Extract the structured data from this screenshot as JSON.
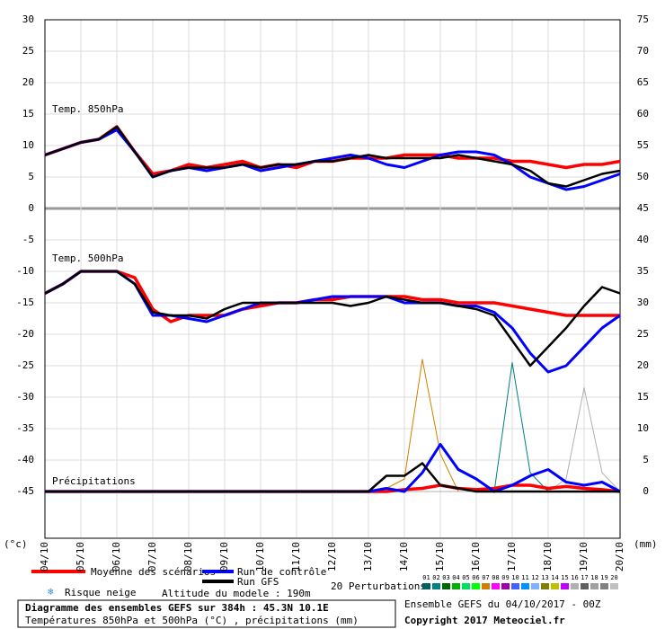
{
  "chart_data": {
    "type": "line",
    "panel_labels": [
      "Temp. 850hPa",
      "Temp. 500hPa",
      "Précipitations"
    ],
    "y_unit": "(°c)",
    "y2_unit": "(mm)",
    "xlim": [
      0,
      384
    ],
    "xticks": [
      {
        "value": 0,
        "label": "04/10"
      },
      {
        "value": 24,
        "label": "05/10"
      },
      {
        "value": 48,
        "label": "06/10"
      },
      {
        "value": 72,
        "label": "07/10"
      },
      {
        "value": 96,
        "label": "08/10"
      },
      {
        "value": 120,
        "label": "09/10"
      },
      {
        "value": 144,
        "label": "10/10"
      },
      {
        "value": 168,
        "label": "11/10"
      },
      {
        "value": 192,
        "label": "12/10"
      },
      {
        "value": 216,
        "label": "13/10"
      },
      {
        "value": 240,
        "label": "14/10"
      },
      {
        "value": 264,
        "label": "15/10"
      },
      {
        "value": 288,
        "label": "16/10"
      },
      {
        "value": 312,
        "label": "17/10"
      },
      {
        "value": 336,
        "label": "18/10"
      },
      {
        "value": 360,
        "label": "19/10"
      },
      {
        "value": 384,
        "label": "20/10"
      }
    ],
    "ylim": [
      -52.5,
      30
    ],
    "yticks": [
      30,
      25,
      20,
      15,
      10,
      5,
      0,
      -5,
      -10,
      -15,
      -20,
      -25,
      -30,
      -35,
      -40,
      -45
    ],
    "y2lim": [
      -7.5,
      75
    ],
    "y2ticks": [
      75,
      70,
      65,
      60,
      55,
      50,
      45,
      40,
      35,
      30,
      25,
      20,
      15,
      10,
      5,
      0
    ],
    "grid": true,
    "x": [
      0,
      12,
      24,
      36,
      48,
      60,
      72,
      84,
      96,
      108,
      120,
      132,
      144,
      156,
      168,
      180,
      192,
      204,
      216,
      228,
      240,
      252,
      264,
      276,
      288,
      300,
      312,
      324,
      336,
      348,
      360,
      372,
      384
    ],
    "series": [
      {
        "name": "Moyenne des scénarios",
        "color": "#ff0000",
        "width": 3.5,
        "values": [
          8.5,
          9.5,
          10.5,
          11,
          13,
          9,
          5.5,
          6,
          7,
          6.5,
          7,
          7.5,
          6.5,
          7,
          6.5,
          7.5,
          7.5,
          8,
          8,
          8,
          8.5,
          8.5,
          8.5,
          8,
          8,
          8,
          7.5,
          7.5,
          7,
          6.5,
          7,
          7,
          7.5
        ]
      },
      {
        "name": "Run de contrôle",
        "color": "#0000ff",
        "width": 3,
        "values": [
          8.5,
          9.5,
          10.5,
          11,
          12.5,
          9,
          5,
          6,
          6.5,
          6,
          6.5,
          7,
          6,
          6.5,
          7,
          7.5,
          8,
          8.5,
          8,
          7,
          6.5,
          7.5,
          8.5,
          9,
          9,
          8.5,
          7,
          5,
          4,
          3,
          3.5,
          4.5,
          5.5
        ]
      },
      {
        "name": "Run GFS",
        "color": "#000000",
        "width": 2.5,
        "values": [
          8.5,
          9.5,
          10.5,
          11,
          13,
          9,
          5,
          6,
          6.5,
          6.5,
          6.5,
          7,
          6.5,
          7,
          7,
          7.5,
          7.5,
          8,
          8.5,
          8,
          8,
          8,
          8,
          8.5,
          8,
          7.5,
          7,
          6,
          4,
          3.5,
          4.5,
          5.5,
          6
        ]
      },
      {
        "name": "Moyenne des scénarios",
        "color": "#ff0000",
        "width": 3.5,
        "values": [
          -13.5,
          -12,
          -10,
          -10,
          -10,
          -11,
          -16,
          -18,
          -17,
          -17,
          -17,
          -16,
          -15.5,
          -15,
          -15,
          -14.5,
          -14.5,
          -14,
          -14,
          -14,
          -14,
          -14.5,
          -14.5,
          -15,
          -15,
          -15,
          -15.5,
          -16,
          -16.5,
          -17,
          -17,
          -17,
          -17
        ]
      },
      {
        "name": "Run de contrôle",
        "color": "#0000ff",
        "width": 3,
        "values": [
          -13.5,
          -12,
          -10,
          -10,
          -10,
          -12,
          -17,
          -17,
          -17.5,
          -18,
          -17,
          -16,
          -15,
          -15,
          -15,
          -14.5,
          -14,
          -14,
          -14,
          -14,
          -15,
          -15,
          -15,
          -15.5,
          -15.5,
          -16.5,
          -19,
          -23,
          -26,
          -25,
          -22,
          -19,
          -17
        ]
      },
      {
        "name": "Run GFS",
        "color": "#000000",
        "width": 2.5,
        "values": [
          -13.5,
          -12,
          -10,
          -10,
          -10,
          -12,
          -16.5,
          -17,
          -17,
          -17.5,
          -16,
          -15,
          -15,
          -15,
          -15,
          -15,
          -15,
          -15.5,
          -15,
          -14,
          -14.5,
          -15,
          -15,
          -15.5,
          -16,
          -17,
          -21,
          -25,
          -22,
          -19,
          -15.5,
          -12.5,
          -13.5
        ]
      },
      {
        "name": "07",
        "color": "#d08000",
        "width": 1,
        "axis": "y2",
        "values": [
          0,
          0,
          0,
          0,
          0,
          0,
          0,
          0,
          0,
          0,
          0,
          0,
          0,
          0,
          0,
          0,
          0,
          0,
          0,
          0.5,
          2,
          21,
          6,
          0,
          0,
          0,
          0,
          0,
          0,
          0,
          0,
          0,
          0
        ]
      },
      {
        "name": "02",
        "color": "#008080",
        "width": 1,
        "axis": "y2",
        "values": [
          0,
          0,
          0,
          0,
          0,
          0,
          0,
          0,
          0,
          0,
          0,
          0,
          0,
          0,
          0,
          0,
          0,
          0,
          0,
          0,
          0,
          0,
          0,
          0,
          0,
          0,
          20.5,
          3,
          0,
          0,
          0,
          0,
          0
        ]
      },
      {
        "name": "16",
        "color": "#b0b0b0",
        "width": 1,
        "axis": "y2",
        "values": [
          0,
          0,
          0,
          0,
          0,
          0,
          0,
          0,
          0,
          0,
          0,
          0,
          0,
          0,
          0,
          0,
          0,
          0,
          0,
          0,
          0,
          0,
          0,
          0,
          0,
          0,
          0,
          0,
          0,
          2,
          16.5,
          3,
          0
        ]
      },
      {
        "name": "Moyenne des scénarios",
        "color": "#ff0000",
        "width": 3.5,
        "axis": "y2",
        "values": [
          0,
          0,
          0,
          0,
          0,
          0,
          0,
          0,
          0,
          0,
          0,
          0,
          0,
          0,
          0,
          0,
          0,
          0,
          0,
          0,
          0.3,
          0.5,
          1,
          0.5,
          0.3,
          0.5,
          1,
          1,
          0.5,
          0.8,
          0.5,
          0.3,
          0
        ]
      },
      {
        "name": "Run de contrôle",
        "color": "#0000ff",
        "width": 3,
        "axis": "y2",
        "values": [
          0,
          0,
          0,
          0,
          0,
          0,
          0,
          0,
          0,
          0,
          0,
          0,
          0,
          0,
          0,
          0,
          0,
          0,
          0,
          0.5,
          0,
          3,
          7.5,
          3.5,
          2,
          0,
          1,
          2.5,
          3.5,
          1.5,
          1,
          1.5,
          0
        ]
      },
      {
        "name": "Run GFS",
        "color": "#000000",
        "width": 2.5,
        "axis": "y2",
        "values": [
          0,
          0,
          0,
          0,
          0,
          0,
          0,
          0,
          0,
          0,
          0,
          0,
          0,
          0,
          0,
          0,
          0,
          0,
          0,
          2.5,
          2.5,
          4.5,
          1,
          0.5,
          0,
          0,
          0,
          0,
          0,
          0,
          0,
          0,
          0
        ]
      }
    ],
    "perturbations_label": "20 Perturbations",
    "perturbations": [
      {
        "name": "01",
        "color": "#006060"
      },
      {
        "name": "02",
        "color": "#008080"
      },
      {
        "name": "03",
        "color": "#006400"
      },
      {
        "name": "04",
        "color": "#00b000"
      },
      {
        "name": "05",
        "color": "#00e060"
      },
      {
        "name": "06",
        "color": "#00ff00"
      },
      {
        "name": "07",
        "color": "#d08000"
      },
      {
        "name": "08",
        "color": "#ff00ff"
      },
      {
        "name": "09",
        "color": "#a000a0"
      },
      {
        "name": "10",
        "color": "#4060ff"
      },
      {
        "name": "11",
        "color": "#0090ff"
      },
      {
        "name": "12",
        "color": "#80b0ff"
      },
      {
        "name": "13",
        "color": "#808000"
      },
      {
        "name": "14",
        "color": "#c0c000"
      },
      {
        "name": "15",
        "color": "#c000ff"
      },
      {
        "name": "16",
        "color": "#b0b0b0"
      },
      {
        "name": "17",
        "color": "#606060"
      },
      {
        "name": "18",
        "color": "#a0a0a0"
      },
      {
        "name": "19",
        "color": "#808080"
      },
      {
        "name": "20",
        "color": "#c0c0c0"
      }
    ],
    "snow_label": "Risque neige",
    "altitude": "Altitude du modele : 190m",
    "title": "Diagramme des ensembles GEFS sur 384h : 45.3N 10.1E",
    "subtitle": "Températures 850hPa et 500hPa (°C) , précipitations (mm)",
    "run": "Ensemble GEFS du 04/10/2017 - 00Z",
    "copyright": "Copyright 2017 Meteociel.fr"
  }
}
